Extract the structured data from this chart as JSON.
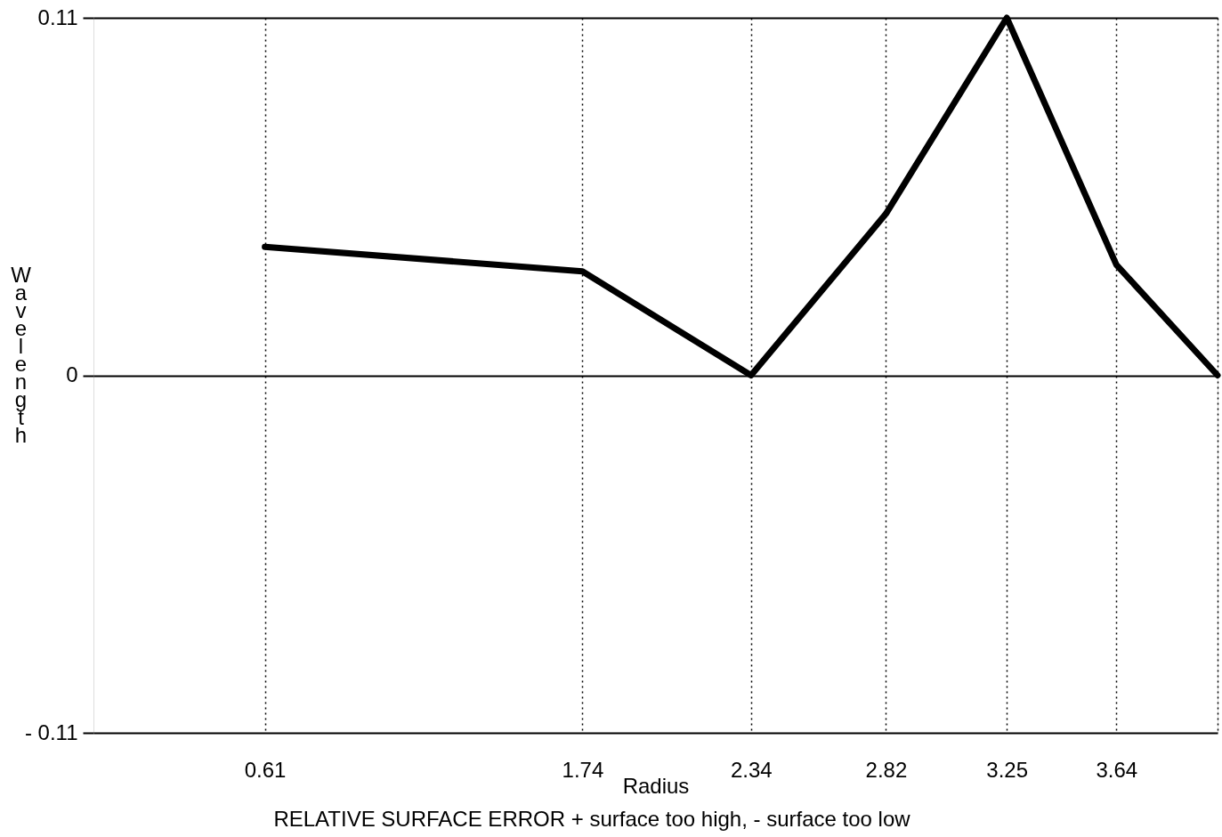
{
  "chart_data": {
    "type": "line",
    "xlabel": "Radius",
    "ylabel": "Wavelength",
    "annotations": [
      "RELATIVE SURFACE ERROR + surface too high, - surface too low"
    ],
    "x": [
      0.61,
      1.74,
      2.34,
      2.82,
      3.25,
      3.64,
      4.0
    ],
    "series": [
      {
        "color": "#000000",
        "values": [
          0.0395,
          0.032,
          0,
          0.0497,
          0.11,
          0.034,
          0
        ]
      }
    ],
    "xlim": [
      0,
      4.0
    ],
    "xticks": [
      0.61,
      1.74,
      2.34,
      2.82,
      3.25,
      3.64,
      {
        "value": 4.0,
        "label": null
      }
    ],
    "ylim": [
      -0.11,
      0.11
    ],
    "yticks": [
      {
        "value": -0.11,
        "label": "- 0.11"
      },
      0,
      0.11
    ],
    "grid": true,
    "marker": "none",
    "line_style": "solid"
  }
}
